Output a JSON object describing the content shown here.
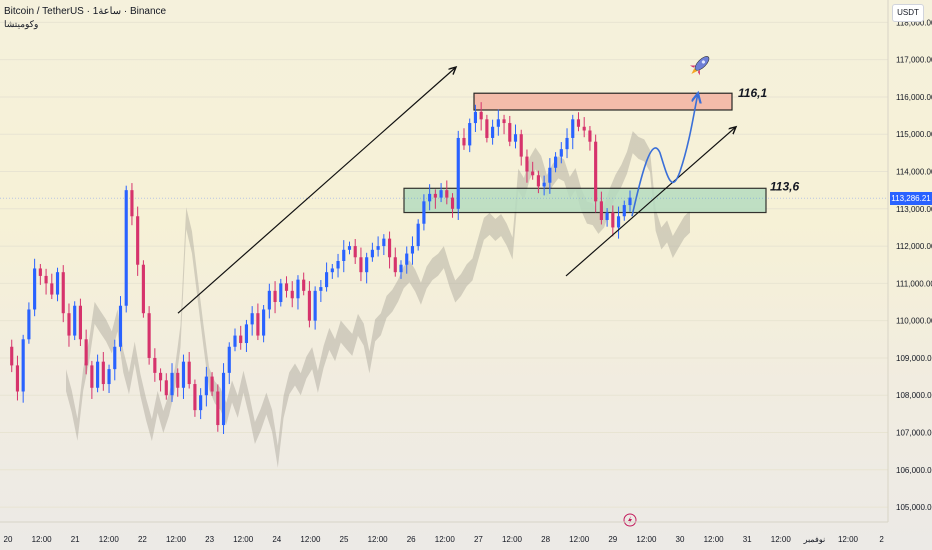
{
  "header": {
    "title": "Bitcoin / TetherUS · 1ساعة · Binance",
    "subtitle": "وكوميتشا"
  },
  "currency": "USDT",
  "last_price_label": "113,286.21",
  "annotations": {
    "upper_zone_label": "116,1",
    "lower_zone_label": "113,6"
  },
  "colors": {
    "up": "#2962ff",
    "down": "#d6336c",
    "upper_zone_fill": "#f4b7a6",
    "lower_zone_fill": "#b6dcc0",
    "cloud": "#a9a49a",
    "projection": "#3a6fd8",
    "price_line": "#2962ff"
  },
  "chart_data": {
    "type": "candlestick",
    "y_axis": {
      "ylim": [
        104600,
        118600
      ],
      "ticks": [
        "105,000.00",
        "106,000.00",
        "107,000.00",
        "108,000.00",
        "109,000.00",
        "110,000.00",
        "111,000.00",
        "112,000.00",
        "113,000.00",
        "114,000.00",
        "115,000.00",
        "116,000.00",
        "117,000.00",
        "118,000.00"
      ],
      "tick_values": [
        105000,
        106000,
        107000,
        108000,
        109000,
        110000,
        111000,
        112000,
        113000,
        114000,
        115000,
        116000,
        117000,
        118000
      ]
    },
    "x_axis": {
      "ticks": [
        "20",
        "12:00",
        "21",
        "12:00",
        "22",
        "12:00",
        "23",
        "12:00",
        "24",
        "12:00",
        "25",
        "12:00",
        "26",
        "12:00",
        "27",
        "12:00",
        "28",
        "12:00",
        "29",
        "12:00",
        "30",
        "12:00",
        "31",
        "12:00",
        "نوفمبر",
        "12:00",
        "2"
      ]
    },
    "zones": [
      {
        "name": "resistance",
        "y_low": 115650,
        "y_high": 116100
      },
      {
        "name": "support",
        "y_low": 112900,
        "y_high": 113550
      }
    ],
    "last_price": 113286.21,
    "price_path": [
      [
        0,
        109300
      ],
      [
        1,
        108800
      ],
      [
        2,
        108100
      ],
      [
        3,
        109500
      ],
      [
        4,
        110300
      ],
      [
        5,
        111400
      ],
      [
        6,
        111200
      ],
      [
        7,
        111000
      ],
      [
        8,
        110700
      ],
      [
        9,
        111300
      ],
      [
        10,
        110200
      ],
      [
        11,
        109600
      ],
      [
        12,
        110400
      ],
      [
        13,
        109500
      ],
      [
        14,
        108800
      ],
      [
        15,
        108200
      ],
      [
        16,
        108900
      ],
      [
        17,
        108300
      ],
      [
        18,
        108700
      ],
      [
        19,
        109300
      ],
      [
        20,
        110400
      ],
      [
        21,
        113500
      ],
      [
        22,
        112800
      ],
      [
        23,
        111500
      ],
      [
        24,
        110200
      ],
      [
        25,
        109000
      ],
      [
        26,
        108600
      ],
      [
        27,
        108400
      ],
      [
        28,
        108000
      ],
      [
        29,
        108600
      ],
      [
        30,
        108200
      ],
      [
        31,
        108900
      ],
      [
        32,
        108300
      ],
      [
        33,
        107600
      ],
      [
        34,
        108000
      ],
      [
        35,
        108500
      ],
      [
        36,
        108100
      ],
      [
        37,
        107200
      ],
      [
        38,
        108600
      ],
      [
        39,
        109300
      ],
      [
        40,
        109600
      ],
      [
        41,
        109400
      ],
      [
        42,
        109900
      ],
      [
        43,
        110200
      ],
      [
        44,
        109600
      ],
      [
        45,
        110300
      ],
      [
        46,
        110800
      ],
      [
        47,
        110500
      ],
      [
        48,
        111000
      ],
      [
        49,
        110800
      ],
      [
        50,
        110600
      ],
      [
        51,
        111100
      ],
      [
        52,
        110800
      ],
      [
        53,
        110000
      ],
      [
        54,
        110800
      ],
      [
        55,
        110900
      ],
      [
        56,
        111300
      ],
      [
        57,
        111400
      ],
      [
        58,
        111600
      ],
      [
        59,
        111900
      ],
      [
        60,
        112000
      ],
      [
        61,
        111700
      ],
      [
        62,
        111300
      ],
      [
        63,
        111700
      ],
      [
        64,
        111900
      ],
      [
        65,
        112000
      ],
      [
        66,
        112200
      ],
      [
        67,
        111700
      ],
      [
        68,
        111300
      ],
      [
        69,
        111500
      ],
      [
        70,
        111800
      ],
      [
        71,
        112000
      ],
      [
        72,
        112600
      ],
      [
        73,
        113200
      ],
      [
        74,
        113400
      ],
      [
        75,
        113300
      ],
      [
        76,
        113500
      ],
      [
        77,
        113300
      ],
      [
        78,
        113000
      ],
      [
        79,
        114900
      ],
      [
        80,
        114700
      ],
      [
        81,
        115300
      ],
      [
        82,
        115600
      ],
      [
        83,
        115400
      ],
      [
        84,
        114900
      ],
      [
        85,
        115200
      ],
      [
        86,
        115400
      ],
      [
        87,
        115300
      ],
      [
        88,
        114800
      ],
      [
        89,
        115000
      ],
      [
        90,
        114400
      ],
      [
        91,
        114000
      ],
      [
        92,
        113900
      ],
      [
        93,
        113600
      ],
      [
        94,
        113700
      ],
      [
        95,
        114100
      ],
      [
        96,
        114400
      ],
      [
        97,
        114600
      ],
      [
        98,
        114900
      ],
      [
        99,
        115400
      ],
      [
        100,
        115200
      ],
      [
        101,
        115100
      ],
      [
        102,
        114800
      ],
      [
        103,
        113200
      ],
      [
        104,
        112700
      ],
      [
        105,
        112900
      ],
      [
        106,
        112500
      ],
      [
        107,
        112800
      ],
      [
        108,
        113100
      ],
      [
        109,
        113300
      ]
    ],
    "bar_count": 110
  }
}
